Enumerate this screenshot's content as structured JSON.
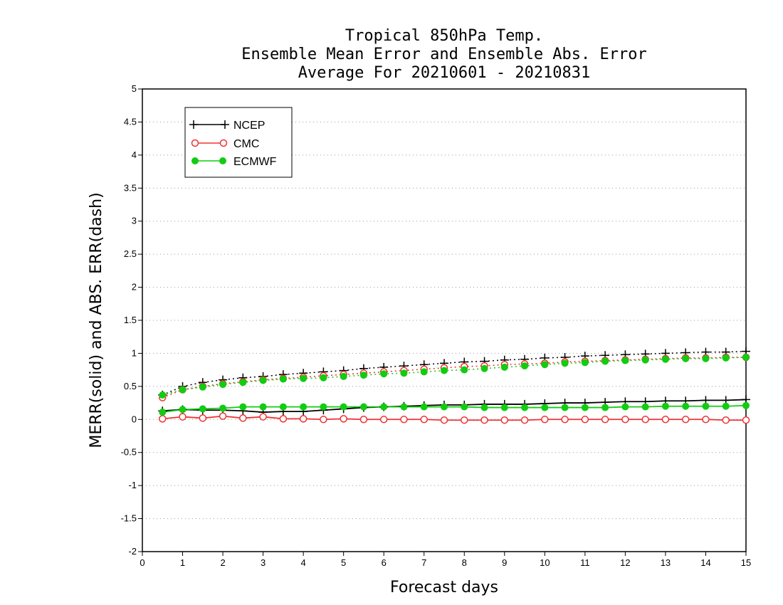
{
  "chart_data": {
    "type": "line",
    "title_lines": [
      "Tropical 850hPa Temp.",
      "Ensemble Mean Error and Ensemble Abs. Error",
      "Average For 20210601 - 20210831"
    ],
    "xlabel": "Forecast days",
    "ylabel": "MERR(solid) and ABS. ERR(dash)",
    "xlim": [
      0,
      15
    ],
    "ylim": [
      -2,
      5
    ],
    "x_ticks": [
      0,
      1,
      2,
      3,
      4,
      5,
      6,
      7,
      8,
      9,
      10,
      11,
      12,
      13,
      14,
      15
    ],
    "y_ticks": [
      -2,
      -1.5,
      -1,
      -0.5,
      0,
      0.5,
      1,
      1.5,
      2,
      2.5,
      3,
      3.5,
      4,
      4.5,
      5
    ],
    "y_tick_labels": [
      "-2",
      "-1.5",
      "-1",
      "-0.5",
      "0",
      "0.5",
      "1",
      "1.5",
      "2",
      "2.5",
      "3",
      "3.5",
      "4",
      "4.5",
      "5"
    ],
    "grid": "horizontal dotted",
    "legend_position": "top-left",
    "x": [
      0.5,
      1,
      1.5,
      2,
      2.5,
      3,
      3.5,
      4,
      4.5,
      5,
      5.5,
      6,
      6.5,
      7,
      7.5,
      8,
      8.5,
      9,
      9.5,
      10,
      10.5,
      11,
      11.5,
      12,
      12.5,
      13,
      13.5,
      14,
      14.5,
      15
    ],
    "series": [
      {
        "name": "NCEP",
        "color": "#000000",
        "marker": "plus",
        "mean_error": [
          0.13,
          0.15,
          0.14,
          0.14,
          0.13,
          0.11,
          0.12,
          0.12,
          0.14,
          0.16,
          0.18,
          0.19,
          0.2,
          0.21,
          0.22,
          0.22,
          0.23,
          0.23,
          0.23,
          0.24,
          0.25,
          0.25,
          0.26,
          0.27,
          0.27,
          0.28,
          0.28,
          0.29,
          0.29,
          0.3
        ],
        "abs_error": [
          0.37,
          0.5,
          0.56,
          0.6,
          0.63,
          0.65,
          0.68,
          0.7,
          0.72,
          0.74,
          0.77,
          0.79,
          0.81,
          0.83,
          0.85,
          0.87,
          0.88,
          0.9,
          0.91,
          0.93,
          0.94,
          0.96,
          0.97,
          0.98,
          0.99,
          1.0,
          1.01,
          1.02,
          1.02,
          1.03
        ]
      },
      {
        "name": "CMC",
        "color": "#ee3333",
        "marker": "open-circle",
        "mean_error": [
          0.01,
          0.04,
          0.02,
          0.05,
          0.02,
          0.04,
          0.01,
          0.01,
          0.0,
          0.01,
          0.0,
          0.0,
          0.0,
          0.0,
          -0.01,
          -0.01,
          -0.01,
          -0.01,
          -0.01,
          0.0,
          0.0,
          0.0,
          0.0,
          0.0,
          0.0,
          0.0,
          0.0,
          0.0,
          -0.01,
          -0.01
        ],
        "abs_error": [
          0.33,
          0.45,
          0.5,
          0.54,
          0.57,
          0.6,
          0.62,
          0.64,
          0.66,
          0.68,
          0.7,
          0.72,
          0.74,
          0.76,
          0.78,
          0.8,
          0.81,
          0.83,
          0.84,
          0.85,
          0.87,
          0.88,
          0.89,
          0.9,
          0.91,
          0.92,
          0.93,
          0.93,
          0.94,
          0.94
        ]
      },
      {
        "name": "ECMWF",
        "color": "#11cc11",
        "marker": "filled-circle",
        "mean_error": [
          0.11,
          0.15,
          0.16,
          0.17,
          0.19,
          0.19,
          0.19,
          0.19,
          0.19,
          0.19,
          0.19,
          0.19,
          0.19,
          0.19,
          0.19,
          0.19,
          0.18,
          0.18,
          0.18,
          0.18,
          0.18,
          0.18,
          0.18,
          0.19,
          0.19,
          0.2,
          0.2,
          0.2,
          0.2,
          0.21
        ],
        "abs_error": [
          0.37,
          0.45,
          0.49,
          0.53,
          0.56,
          0.59,
          0.61,
          0.62,
          0.63,
          0.65,
          0.67,
          0.69,
          0.7,
          0.72,
          0.74,
          0.75,
          0.77,
          0.79,
          0.81,
          0.83,
          0.85,
          0.86,
          0.88,
          0.89,
          0.9,
          0.91,
          0.92,
          0.92,
          0.93,
          0.94
        ]
      }
    ]
  }
}
